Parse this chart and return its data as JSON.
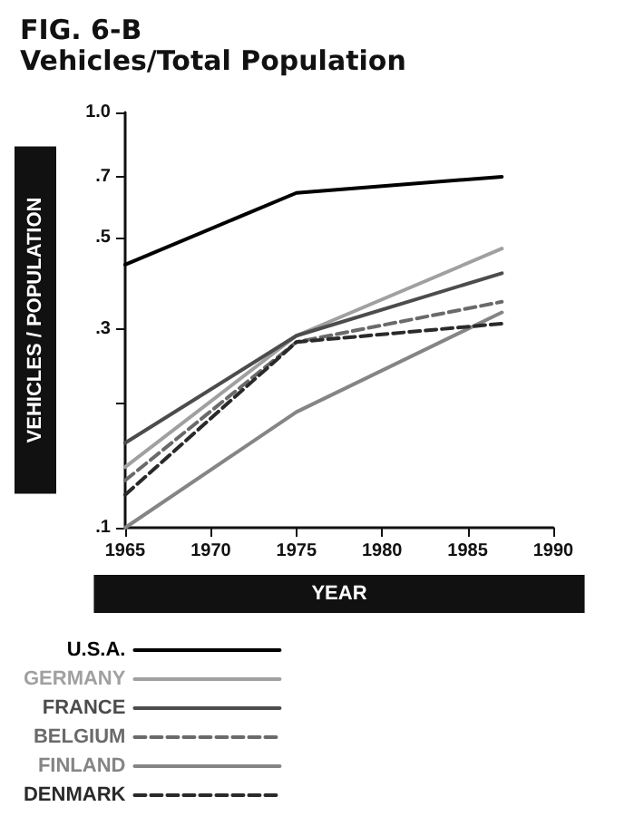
{
  "chart_data": {
    "type": "line",
    "title": "FIG. 6-B",
    "subtitle": "Vehicles/Total Population",
    "xlabel": "YEAR",
    "ylabel": "VEHICLES / POPULATION",
    "x": [
      1965,
      1975,
      1987
    ],
    "xlim": [
      1965,
      1990
    ],
    "xticks": [
      1965,
      1970,
      1975,
      1980,
      1985,
      1990
    ],
    "log": true,
    "ylim": [
      0.1,
      1.0
    ],
    "yticks": [
      {
        "value": 0.1,
        "label": ".1"
      },
      {
        "value": 0.2,
        "label": null
      },
      {
        "value": 0.3,
        "label": ".3"
      },
      {
        "value": 0.5,
        "label": ".5"
      },
      {
        "value": 0.7,
        "label": ".7"
      },
      {
        "value": 1.0,
        "label": "1.0"
      }
    ],
    "grid": false,
    "legend": "bottom left",
    "marker": "none",
    "series": [
      {
        "name": "U.S.A.",
        "color": "#000000",
        "values": [
          0.43,
          0.64,
          0.7
        ],
        "line_style": "solid"
      },
      {
        "name": "GERMANY",
        "color": "#a0a0a0",
        "values": [
          0.14,
          0.29,
          0.47
        ],
        "line_style": "solid"
      },
      {
        "name": "FRANCE",
        "color": "#4c4c4c",
        "values": [
          0.16,
          0.29,
          0.41
        ],
        "line_style": "solid"
      },
      {
        "name": "BELGIUM",
        "color": "#6a6a6a",
        "values": [
          0.13,
          0.28,
          0.35
        ],
        "line_style": "dashed"
      },
      {
        "name": "FINLAND",
        "color": "#858585",
        "values": [
          0.1,
          0.19,
          0.33
        ],
        "line_style": "solid"
      },
      {
        "name": "DENMARK",
        "color": "#2a2a2a",
        "values": [
          0.12,
          0.28,
          0.31
        ],
        "line_style": "dashed"
      }
    ]
  }
}
